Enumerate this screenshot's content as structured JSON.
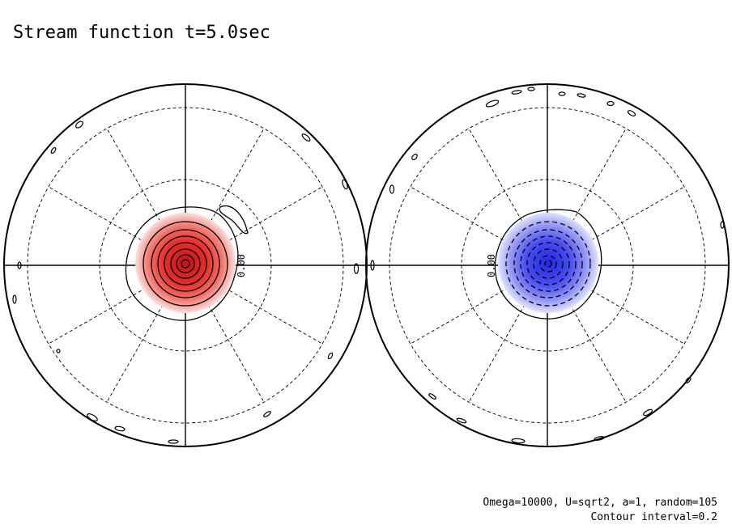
{
  "title": "Stream function t=5.0sec",
  "params": "Omega=10000, U=sqrt2, a=1, random=105",
  "contour_note": "Contour interval=0.2",
  "hemispheres": [
    {
      "label": "0.00",
      "sign": "positive",
      "fill_color": "#e8312a",
      "light_color": "#fbe0dd"
    },
    {
      "label": "0.00",
      "sign": "negative",
      "fill_color": "#3b3ff0",
      "light_color": "#e0e2fd"
    }
  ],
  "colors": {
    "positive": "#e8312a",
    "negative": "#3b3ff0",
    "line": "#000000"
  }
}
